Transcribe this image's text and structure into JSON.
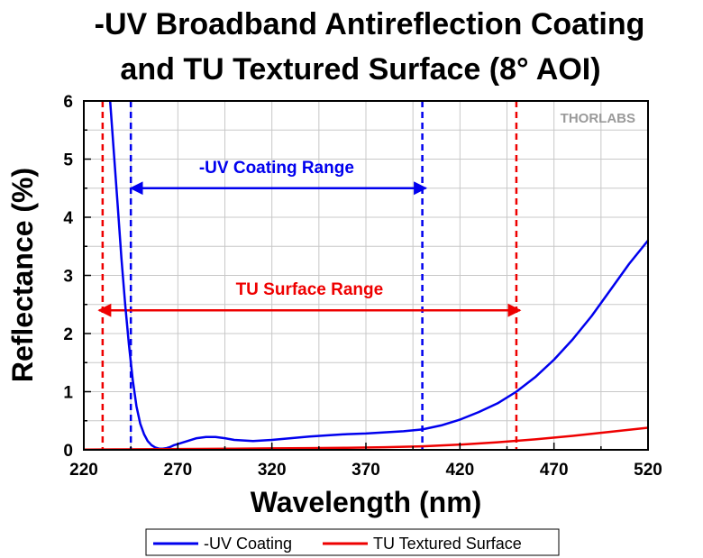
{
  "chart_data": {
    "type": "line",
    "title_lines": [
      "-UV Broadband Antireflection Coating",
      "and TU Textured Surface (8° AOI)"
    ],
    "xlabel": "Wavelength (nm)",
    "ylabel": "Reflectance (%)",
    "xlim": [
      220,
      520
    ],
    "ylim": [
      0,
      6
    ],
    "xticks": [
      220,
      270,
      320,
      370,
      420,
      470,
      520
    ],
    "yticks": [
      0,
      1,
      2,
      3,
      4,
      5,
      6
    ],
    "grid": true,
    "watermark": "THORLABS",
    "legend_placement": "bottom",
    "series": [
      {
        "name": "-UV Coating",
        "color": "#0000ee",
        "x": [
          234,
          236,
          238,
          240,
          242,
          244,
          246,
          248,
          250,
          252,
          254,
          256,
          258,
          260,
          262,
          264,
          266,
          268,
          270,
          275,
          280,
          285,
          290,
          295,
          300,
          310,
          320,
          330,
          340,
          350,
          360,
          370,
          380,
          390,
          400,
          410,
          420,
          430,
          440,
          450,
          460,
          470,
          480,
          490,
          500,
          510,
          520
        ],
        "y": [
          6.0,
          5.1,
          4.2,
          3.3,
          2.5,
          1.8,
          1.2,
          0.75,
          0.45,
          0.27,
          0.15,
          0.08,
          0.04,
          0.02,
          0.02,
          0.03,
          0.05,
          0.08,
          0.1,
          0.15,
          0.2,
          0.22,
          0.22,
          0.2,
          0.17,
          0.15,
          0.17,
          0.2,
          0.23,
          0.25,
          0.27,
          0.28,
          0.3,
          0.32,
          0.35,
          0.42,
          0.52,
          0.65,
          0.8,
          1.0,
          1.25,
          1.55,
          1.9,
          2.3,
          2.75,
          3.2,
          3.6
        ]
      },
      {
        "name": "TU Textured Surface",
        "color": "#ee0000",
        "x": [
          220,
          240,
          260,
          280,
          300,
          320,
          340,
          360,
          380,
          400,
          420,
          440,
          460,
          480,
          500,
          520
        ],
        "y": [
          0.005,
          0.008,
          0.012,
          0.016,
          0.02,
          0.025,
          0.03,
          0.035,
          0.045,
          0.06,
          0.09,
          0.13,
          0.18,
          0.24,
          0.31,
          0.38
        ]
      }
    ],
    "markers": [
      {
        "name": "-UV Coating Range",
        "color": "#0000ee",
        "x_start": 245,
        "x_end": 400,
        "y": 4.5
      },
      {
        "name": "TU Surface Range",
        "color": "#ee0000",
        "x_start": 230,
        "x_end": 450,
        "y": 2.4
      }
    ]
  }
}
